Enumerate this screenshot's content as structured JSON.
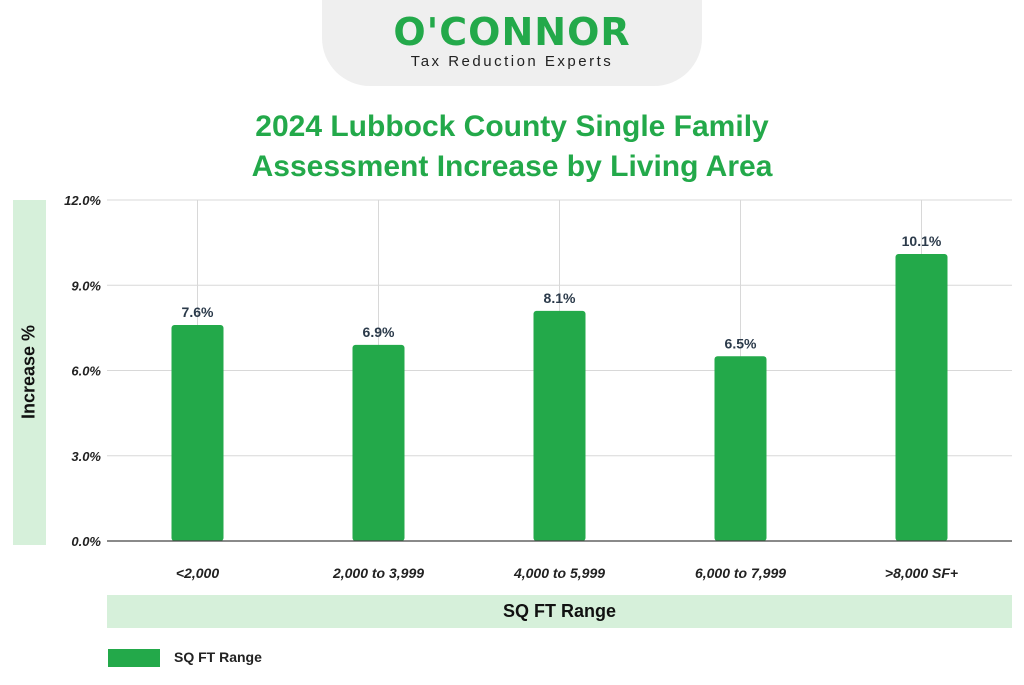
{
  "brand": {
    "name": "O'CONNOR",
    "tagline": "Tax Reduction Experts"
  },
  "chart_data": {
    "type": "bar",
    "title_line1": "2024 Lubbock County Single Family",
    "title_line2": "Assessment Increase by Living Area",
    "xlabel": "SQ FT Range",
    "ylabel": "Increase %",
    "categories": [
      "<2,000",
      "2,000 to 3,999",
      "4,000 to 5,999",
      "6,000 to 7,999",
      ">8,000 SF+"
    ],
    "series": [
      {
        "name": "SQ FT Range",
        "values": [
          7.6,
          6.9,
          8.1,
          6.5,
          10.1
        ],
        "value_labels": [
          "7.6%",
          "6.9%",
          "8.1%",
          "6.5%",
          "10.1%"
        ]
      }
    ],
    "ylim": [
      0,
      12
    ],
    "yticks": [
      0,
      3,
      6,
      9,
      12
    ],
    "ytick_labels": [
      "0.0%",
      "3.0%",
      "6.0%",
      "9.0%",
      "12.0%"
    ],
    "grid": true,
    "legend_position": "bottom-left",
    "bar_color": "#23a94a"
  }
}
